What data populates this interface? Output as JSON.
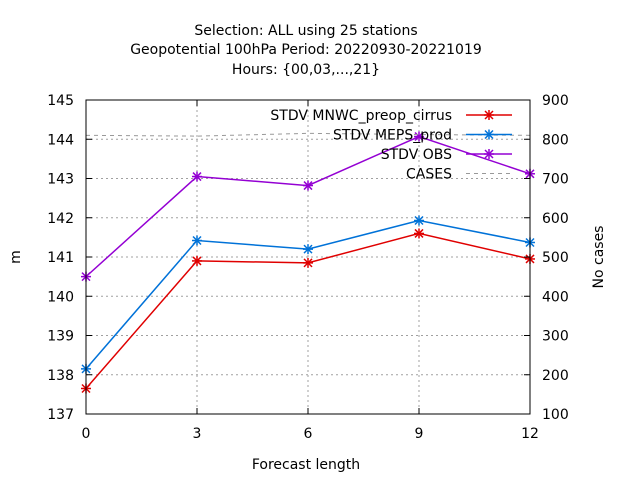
{
  "chart_data": {
    "type": "line",
    "title_lines": [
      "Selection: ALL using    25 stations",
      "Geopotential 100hPa   Period: 20220930-20221019",
      "Hours: {00,03,...,21}"
    ],
    "xlabel": "Forecast length",
    "ylabel": "m",
    "y2label": "No cases",
    "x": [
      0,
      3,
      6,
      9,
      12
    ],
    "xlim": [
      0,
      12
    ],
    "ylim": [
      137,
      145
    ],
    "y2lim": [
      100,
      900
    ],
    "xticks": [
      0,
      3,
      6,
      9,
      12
    ],
    "yticks": [
      137,
      138,
      139,
      140,
      141,
      142,
      143,
      144,
      145
    ],
    "y2ticks": [
      100,
      200,
      300,
      400,
      500,
      600,
      700,
      800,
      900
    ],
    "grid": true,
    "legend_position": "top-right",
    "series": [
      {
        "name": "STDV MNWC_preop_cirrus",
        "axis": "y",
        "color": "#e00000",
        "values": [
          137.65,
          140.9,
          140.85,
          141.6,
          140.95
        ]
      },
      {
        "name": "STDV MEPS_prod",
        "axis": "y",
        "color": "#0072d8",
        "values": [
          138.15,
          141.42,
          141.2,
          141.93,
          141.37
        ]
      },
      {
        "name": "STDV OBS",
        "axis": "y",
        "color": "#9400d3",
        "values": [
          140.5,
          143.05,
          142.82,
          144.07,
          143.12
        ]
      },
      {
        "name": "CASES",
        "axis": "y2",
        "color": "#999999",
        "dashed": true,
        "values": [
          810,
          808,
          815,
          812,
          810
        ]
      }
    ]
  }
}
